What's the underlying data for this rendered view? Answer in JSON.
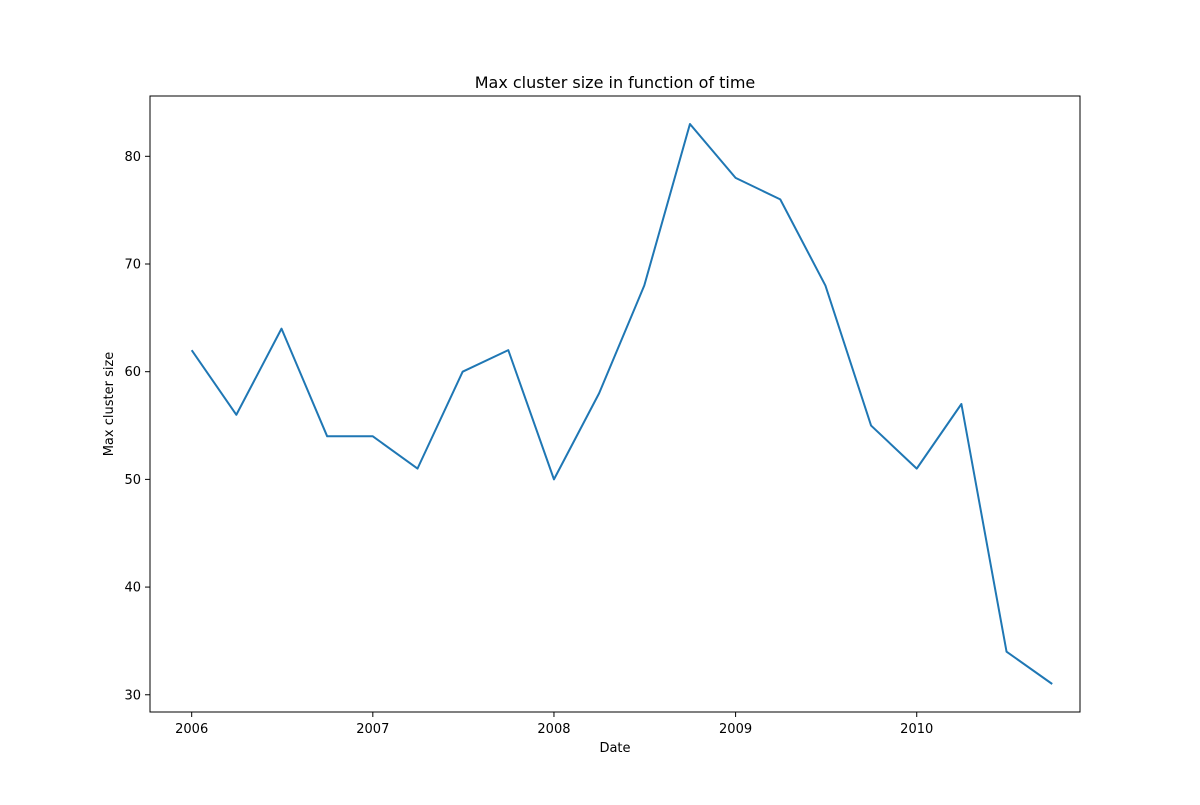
{
  "chart_data": {
    "type": "line",
    "title": "Max cluster size in function of time",
    "xlabel": "Date",
    "ylabel": "Max cluster size",
    "x_ticks": [
      "2006",
      "2007",
      "2008",
      "2009",
      "2010"
    ],
    "y_ticks": [
      30,
      40,
      50,
      60,
      70,
      80
    ],
    "xlim": [
      "2005-10-09",
      "2010-11-26"
    ],
    "ylim": [
      28.4,
      85.6
    ],
    "grid": false,
    "line_color": "#1f77b4",
    "series": [
      {
        "x": [
          "2006-01-01",
          "2006-04-01",
          "2006-07-01",
          "2006-10-01",
          "2007-01-01",
          "2007-04-01",
          "2007-07-01",
          "2007-10-01",
          "2008-01-01",
          "2008-04-01",
          "2008-07-01",
          "2008-10-01",
          "2009-01-01",
          "2009-04-01",
          "2009-07-01",
          "2009-10-01",
          "2010-01-01",
          "2010-04-01",
          "2010-07-01",
          "2010-10-01"
        ],
        "values": [
          62,
          56,
          64,
          54,
          54,
          51,
          60,
          62,
          50,
          58,
          68,
          83,
          78,
          76,
          68,
          55,
          51,
          57,
          34,
          31
        ]
      }
    ]
  }
}
